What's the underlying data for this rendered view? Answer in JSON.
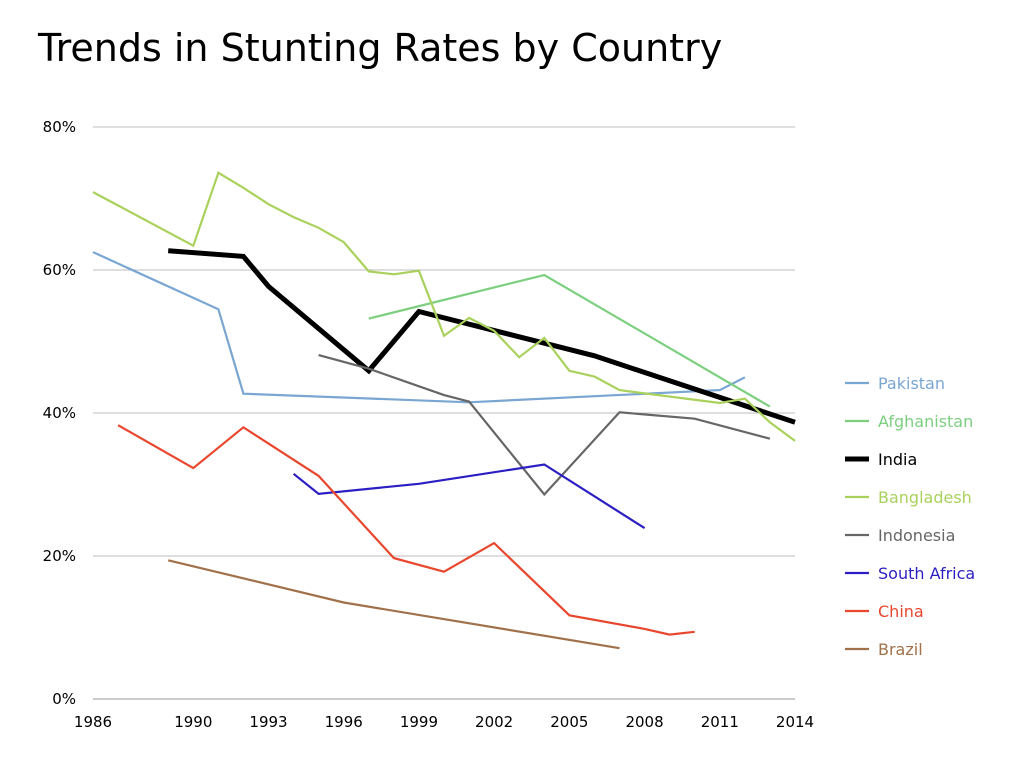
{
  "chart_data": {
    "type": "line",
    "title": "Trends in Stunting Rates by Country",
    "xlabel": "",
    "ylabel": "",
    "xlim": [
      1986,
      2014
    ],
    "ylim": [
      0,
      80
    ],
    "x_ticks": [
      {
        "value": 1986,
        "label": "1986"
      },
      {
        "value": 1990,
        "label": "1990"
      },
      {
        "value": 1993,
        "label": "1993"
      },
      {
        "value": 1996,
        "label": "1996"
      },
      {
        "value": 1999,
        "label": "1999"
      },
      {
        "value": 2002,
        "label": "2002"
      },
      {
        "value": 2005,
        "label": "2005"
      },
      {
        "value": 2008,
        "label": "2008"
      },
      {
        "value": 2011,
        "label": "2011"
      },
      {
        "value": 2014,
        "label": "2014"
      }
    ],
    "y_ticks": [
      {
        "value": 0,
        "label": "0%"
      },
      {
        "value": 20,
        "label": "20%"
      },
      {
        "value": 40,
        "label": "40%"
      },
      {
        "value": 60,
        "label": "60%"
      },
      {
        "value": 80,
        "label": "80%"
      }
    ],
    "grid": "horizontal",
    "legend_position": "right",
    "series": [
      {
        "name": "Pakistan",
        "color": "#7aa6d2",
        "width": "thin",
        "points": [
          [
            1986,
            62.5
          ],
          [
            1991,
            54.5
          ],
          [
            1992,
            42.7
          ],
          [
            2001,
            41.5
          ],
          [
            2011,
            43.2
          ],
          [
            2012,
            45.0
          ]
        ]
      },
      {
        "name": "Afghanistan",
        "color": "#7dcf80",
        "width": "thin",
        "points": [
          [
            1997,
            53.2
          ],
          [
            2004,
            59.3
          ],
          [
            2013,
            40.9
          ]
        ]
      },
      {
        "name": "India",
        "color": "#000000",
        "width": "thick",
        "points": [
          [
            1989,
            62.7
          ],
          [
            1992,
            61.9
          ],
          [
            1993,
            57.7
          ],
          [
            1997,
            45.9
          ],
          [
            1999,
            54.2
          ],
          [
            2006,
            48.0
          ],
          [
            2014,
            38.7
          ]
        ]
      },
      {
        "name": "Bangladesh",
        "color": "#a9d15c",
        "width": "thin",
        "points": [
          [
            1986,
            70.9
          ],
          [
            1990,
            63.4
          ],
          [
            1991,
            73.6
          ],
          [
            1992,
            71.5
          ],
          [
            1993,
            69.2
          ],
          [
            1994,
            67.4
          ],
          [
            1995,
            65.9
          ],
          [
            1996,
            63.9
          ],
          [
            1997,
            59.8
          ],
          [
            1998,
            59.4
          ],
          [
            1999,
            59.9
          ],
          [
            2000,
            50.8
          ],
          [
            2001,
            53.3
          ],
          [
            2002,
            51.5
          ],
          [
            2003,
            47.8
          ],
          [
            2004,
            50.5
          ],
          [
            2005,
            45.9
          ],
          [
            2006,
            45.1
          ],
          [
            2007,
            43.2
          ],
          [
            2011,
            41.4
          ],
          [
            2012,
            42.0
          ],
          [
            2013,
            38.7
          ],
          [
            2014,
            36.1
          ]
        ]
      },
      {
        "name": "Indonesia",
        "color": "#666666",
        "width": "thin",
        "points": [
          [
            1995,
            48.1
          ],
          [
            1997,
            46.2
          ],
          [
            2000,
            42.5
          ],
          [
            2001,
            41.6
          ],
          [
            2004,
            28.6
          ],
          [
            2007,
            40.1
          ],
          [
            2010,
            39.2
          ],
          [
            2013,
            36.4
          ]
        ]
      },
      {
        "name": "South Africa",
        "color": "#2b1fc4",
        "width": "thin",
        "points": [
          [
            1994,
            31.5
          ],
          [
            1995,
            28.7
          ],
          [
            1999,
            30.1
          ],
          [
            2004,
            32.8
          ],
          [
            2008,
            23.9
          ]
        ]
      },
      {
        "name": "China",
        "color": "#e8472e",
        "width": "thin",
        "points": [
          [
            1987,
            38.3
          ],
          [
            1990,
            32.3
          ],
          [
            1992,
            38.0
          ],
          [
            1995,
            31.2
          ],
          [
            1998,
            19.7
          ],
          [
            2000,
            17.8
          ],
          [
            2002,
            21.8
          ],
          [
            2005,
            11.7
          ],
          [
            2008,
            9.8
          ],
          [
            2009,
            9.0
          ],
          [
            2010,
            9.4
          ]
        ]
      },
      {
        "name": "Brazil",
        "color": "#a0714a",
        "width": "thin",
        "points": [
          [
            1989,
            19.4
          ],
          [
            1996,
            13.5
          ],
          [
            2007,
            7.1
          ]
        ]
      }
    ]
  }
}
